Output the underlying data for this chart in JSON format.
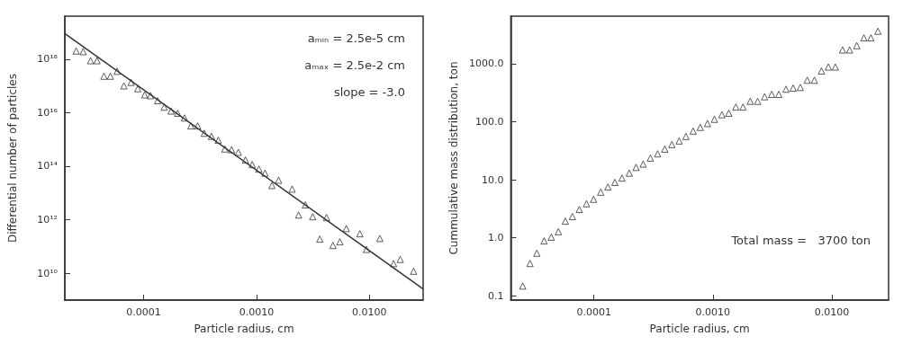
{
  "chart_data": [
    {
      "type": "scatter",
      "xlabel": "Particle radius, cm",
      "ylabel": "Differential number of particles",
      "log": "xy",
      "grid": false,
      "xlim": [
        2e-05,
        0.03
      ],
      "ylim": [
        1000000000.0,
        4e+19
      ],
      "xticks": [
        {
          "value": 0.0001,
          "label": "0.0001"
        },
        {
          "value": 0.001,
          "label": "0.0010"
        },
        {
          "value": 0.01,
          "label": "0.0100"
        }
      ],
      "yticks": [
        {
          "value": 10000000000.0,
          "label": "10¹⁰"
        },
        {
          "value": 1000000000000.0,
          "label": "10¹²"
        },
        {
          "value": 100000000000000.0,
          "label": "10¹⁴"
        },
        {
          "value": 1e+16,
          "label": "10¹⁶"
        },
        {
          "value": 1e+18,
          "label": "10¹⁸"
        }
      ],
      "annotations": [
        "aₘᵢₙ = 2.5e-5 cm",
        "aₘₐₓ = 2.5e-2 cm",
        "slope = -3.0"
      ],
      "series": [
        {
          "color": "#333333",
          "marker": "triangle",
          "x": [
            2.52e-05,
            2.91e-05,
            3.38e-05,
            3.86e-05,
            4.44e-05,
            5.07e-05,
            5.82e-05,
            6.68e-05,
            7.73e-05,
            8.87e-05,
            0.000102,
            0.000115,
            0.000133,
            0.000152,
            0.000175,
            0.0002,
            0.00023,
            0.000262,
            0.000301,
            0.000344,
            0.000399,
            0.000458,
            0.000524,
            0.000601,
            0.00069,
            0.000798,
            0.000916,
            0.00105,
            0.00119,
            0.00137,
            0.00157,
            0.00207,
            0.00236,
            0.00271,
            0.00315,
            0.00364,
            0.00418,
            0.00476,
            0.00548,
            0.00625,
            0.00824,
            0.00942,
            0.0124,
            0.0164,
            0.0188,
            0.0247
          ],
          "values": [
            2e+18,
            1.9e+18,
            8.7e+17,
            8.7e+17,
            2.3e+17,
            2.3e+17,
            3.5e+17,
            1e+17,
            1.35e+17,
            7.8e+16,
            4.6e+16,
            4.3e+16,
            2.8e+16,
            1.6e+16,
            1.15e+16,
            9500000000000000.0,
            6300000000000000.0,
            3200000000000000.0,
            3200000000000000.0,
            1700000000000000.0,
            1300000000000000.0,
            930000000000000.0,
            440000000000000.0,
            410000000000000.0,
            330000000000000.0,
            170000000000000.0,
            115000000000000.0,
            78000000000000.0,
            55000000000000.0,
            19000000000000.0,
            30000000000000.0,
            14000000000000.0,
            1500000000000.0,
            3600000000000.0,
            1300000000000.0,
            190000000000.0,
            1200000000000.0,
            110000000000.0,
            150000000000.0,
            470000000000.0,
            300000000000.0,
            78000000000.0,
            200000000000.0,
            23000000000.0,
            33000000000.0,
            12000000000.0
          ]
        },
        {
          "type": "line",
          "color": "#333333",
          "x": [
            2e-05,
            0.03
          ],
          "values": [
            8.9e+18,
            2600000000.0
          ]
        }
      ]
    },
    {
      "type": "scatter",
      "xlabel": "Particle radius, cm",
      "ylabel": "Cummulative mass distribution, ton",
      "log": "xy",
      "grid": false,
      "xlim": [
        2e-05,
        0.03
      ],
      "ylim": [
        0.084,
        6600
      ],
      "xticks": [
        {
          "value": 0.0001,
          "label": "0.0001"
        },
        {
          "value": 0.001,
          "label": "0.0010"
        },
        {
          "value": 0.01,
          "label": "0.0100"
        }
      ],
      "yticks": [
        {
          "value": 0.1,
          "label": "0.1"
        },
        {
          "value": 1,
          "label": "1.0"
        },
        {
          "value": 10,
          "label": "10.0"
        },
        {
          "value": 100,
          "label": "100.0"
        },
        {
          "value": 1000,
          "label": "1000.0"
        }
      ],
      "annotations": [
        "Total mass =   3700 ton"
      ],
      "series": [
        {
          "color": "#333333",
          "marker": "triangle",
          "x": [
            2.52e-05,
            2.9e-05,
            3.31e-05,
            3.81e-05,
            4.38e-05,
            5.02e-05,
            5.74e-05,
            6.59e-05,
            7.53e-05,
            8.65e-05,
            9.93e-05,
            0.000114,
            0.000131,
            0.00015,
            0.000172,
            0.000198,
            0.000226,
            0.000259,
            0.000298,
            0.000343,
            0.000394,
            0.000452,
            0.00052,
            0.000593,
            0.000682,
            0.000783,
            0.0009,
            0.00103,
            0.00119,
            0.00136,
            0.00156,
            0.00179,
            0.00206,
            0.00238,
            0.00272,
            0.00312,
            0.00358,
            0.00412,
            0.00473,
            0.00543,
            0.00621,
            0.00713,
            0.00818,
            0.00935,
            0.0107,
            0.0123,
            0.0141,
            0.0162,
            0.0186,
            0.0213,
            0.0244
          ],
          "values": [
            0.147,
            0.36,
            0.54,
            0.88,
            1.02,
            1.27,
            1.93,
            2.31,
            3.07,
            3.85,
            4.6,
            6.1,
            7.5,
            9.0,
            10.7,
            13.0,
            16.3,
            18.6,
            23.6,
            27.9,
            33.7,
            40.4,
            46.6,
            55.7,
            69,
            80,
            93,
            110,
            132,
            140,
            179,
            179,
            225,
            225,
            269,
            296,
            296,
            363,
            380,
            390,
            519,
            519,
            751,
            877,
            877,
            1730,
            1730,
            2050,
            2790,
            2790,
            3630
          ]
        }
      ]
    }
  ]
}
